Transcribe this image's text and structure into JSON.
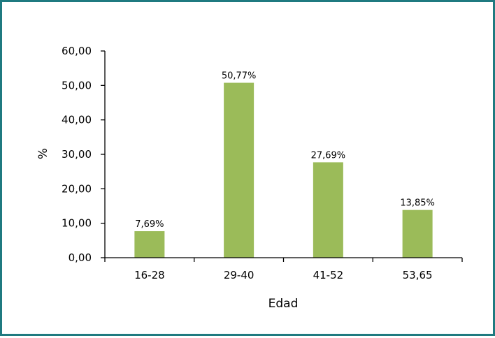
{
  "chart_data": {
    "type": "bar",
    "categories": [
      "16-28",
      "29-40",
      "41-52",
      "53,65"
    ],
    "values": [
      7.69,
      50.77,
      27.69,
      13.85
    ],
    "data_labels": [
      "7,69%",
      "50,77%",
      "27,69%",
      "13,85%"
    ],
    "title": "",
    "xlabel": "Edad",
    "ylabel": "%",
    "ylim": [
      0,
      60
    ],
    "yticks": [
      0,
      10,
      20,
      30,
      40,
      50,
      60
    ],
    "ytick_labels": [
      "0,00",
      "10,00",
      "20,00",
      "30,00",
      "40,00",
      "50,00",
      "60,00"
    ],
    "grid": false,
    "legend": "none",
    "bar_color": "#9bbb59",
    "border_color": "#1f7a80"
  }
}
